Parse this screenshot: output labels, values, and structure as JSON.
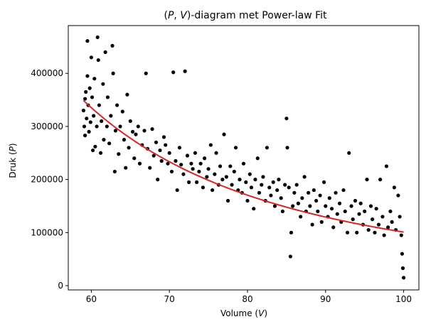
{
  "chart_data": {
    "type": "scatter",
    "title_parts": [
      "(",
      "P",
      ", ",
      "V",
      ")-diagram met Power-law Fit"
    ],
    "xlabel_parts": [
      "Volume (",
      "V",
      ")"
    ],
    "ylabel_parts": [
      "Druk (",
      "P",
      ")"
    ],
    "xlim": [
      57.05,
      101.95
    ],
    "ylim": [
      -8000,
      490000
    ],
    "x_ticks": [
      60,
      70,
      80,
      90,
      100
    ],
    "y_ticks": [
      0,
      100000,
      200000,
      300000,
      400000
    ],
    "grid": false,
    "colors": {
      "points": "#000000",
      "fit": "#d62728",
      "axes": "#000000"
    },
    "fit": {
      "label": "Power-law Fit",
      "form": "P = a * V^b",
      "a": 5060000000.0,
      "b": -2.35,
      "x_range": [
        59,
        100
      ]
    },
    "scatter_summary": {
      "x_range": [
        59,
        100
      ],
      "y_min_estimate": 13000,
      "y_max_estimate": 468000,
      "description": "dense noisy data cloud scattered around the fitted power-law curve"
    },
    "points": [
      [
        59.0,
        330000
      ],
      [
        59.1,
        300000
      ],
      [
        59.2,
        352000
      ],
      [
        59.2,
        283000
      ],
      [
        59.3,
        365000
      ],
      [
        59.4,
        315000
      ],
      [
        59.5,
        461000
      ],
      [
        59.5,
        395000
      ],
      [
        59.6,
        340000
      ],
      [
        59.7,
        290000
      ],
      [
        59.8,
        372000
      ],
      [
        59.9,
        308000
      ],
      [
        60.0,
        430000
      ],
      [
        60.1,
        355000
      ],
      [
        60.2,
        255000
      ],
      [
        60.3,
        320000
      ],
      [
        60.4,
        390000
      ],
      [
        60.5,
        262000
      ],
      [
        60.7,
        300000
      ],
      [
        60.8,
        468000
      ],
      [
        60.9,
        425000
      ],
      [
        61.0,
        340000
      ],
      [
        61.2,
        250000
      ],
      [
        61.3,
        310000
      ],
      [
        61.5,
        380000
      ],
      [
        61.6,
        275000
      ],
      [
        61.8,
        440000
      ],
      [
        62.0,
        300000
      ],
      [
        62.1,
        355000
      ],
      [
        62.3,
        268000
      ],
      [
        62.5,
        320000
      ],
      [
        62.7,
        452000
      ],
      [
        62.8,
        400000
      ],
      [
        63.0,
        215000
      ],
      [
        63.1,
        292000
      ],
      [
        63.3,
        340000
      ],
      [
        63.5,
        248000
      ],
      [
        63.7,
        300000
      ],
      [
        64.0,
        328000
      ],
      [
        64.2,
        275000
      ],
      [
        64.4,
        222000
      ],
      [
        64.6,
        360000
      ],
      [
        64.8,
        260000
      ],
      [
        65.0,
        310000
      ],
      [
        65.3,
        290000
      ],
      [
        65.5,
        240000
      ],
      [
        65.7,
        285000
      ],
      [
        66.0,
        300000
      ],
      [
        66.2,
        230000
      ],
      [
        66.5,
        265000
      ],
      [
        66.8,
        292000
      ],
      [
        67.0,
        400000
      ],
      [
        67.2,
        258000
      ],
      [
        67.5,
        222000
      ],
      [
        67.8,
        295000
      ],
      [
        68.0,
        245000
      ],
      [
        68.3,
        270000
      ],
      [
        68.5,
        200000
      ],
      [
        68.8,
        255000
      ],
      [
        69.0,
        235000
      ],
      [
        69.3,
        280000
      ],
      [
        69.5,
        265000
      ],
      [
        69.8,
        230000
      ],
      [
        70.0,
        250000
      ],
      [
        70.3,
        215000
      ],
      [
        70.5,
        402000
      ],
      [
        70.8,
        235000
      ],
      [
        71.0,
        180000
      ],
      [
        71.3,
        260000
      ],
      [
        71.5,
        228000
      ],
      [
        71.8,
        210000
      ],
      [
        72.0,
        404000
      ],
      [
        72.3,
        245000
      ],
      [
        72.5,
        195000
      ],
      [
        72.8,
        230000
      ],
      [
        73.0,
        220000
      ],
      [
        73.3,
        250000
      ],
      [
        73.5,
        195000
      ],
      [
        73.8,
        215000
      ],
      [
        74.0,
        230000
      ],
      [
        74.3,
        185000
      ],
      [
        74.5,
        240000
      ],
      [
        74.8,
        205000
      ],
      [
        75.0,
        220000
      ],
      [
        75.3,
        265000
      ],
      [
        75.5,
        180000
      ],
      [
        75.8,
        210000
      ],
      [
        76.0,
        250000
      ],
      [
        76.3,
        190000
      ],
      [
        76.5,
        225000
      ],
      [
        76.8,
        200000
      ],
      [
        77.0,
        285000
      ],
      [
        77.3,
        205000
      ],
      [
        77.5,
        160000
      ],
      [
        77.8,
        225000
      ],
      [
        78.0,
        190000
      ],
      [
        78.3,
        215000
      ],
      [
        78.5,
        260000
      ],
      [
        78.8,
        180000
      ],
      [
        79.0,
        200000
      ],
      [
        79.3,
        175000
      ],
      [
        79.5,
        230000
      ],
      [
        79.8,
        195000
      ],
      [
        80.0,
        160000
      ],
      [
        80.3,
        210000
      ],
      [
        80.5,
        185000
      ],
      [
        80.8,
        145000
      ],
      [
        81.0,
        200000
      ],
      [
        81.3,
        240000
      ],
      [
        81.5,
        175000
      ],
      [
        81.8,
        190000
      ],
      [
        82.0,
        205000
      ],
      [
        82.3,
        160000
      ],
      [
        82.5,
        260000
      ],
      [
        82.8,
        185000
      ],
      [
        83.0,
        170000
      ],
      [
        83.3,
        195000
      ],
      [
        83.5,
        150000
      ],
      [
        83.8,
        180000
      ],
      [
        84.0,
        200000
      ],
      [
        84.3,
        165000
      ],
      [
        84.5,
        140000
      ],
      [
        84.8,
        190000
      ],
      [
        85.0,
        315000
      ],
      [
        85.1,
        260000
      ],
      [
        85.3,
        185000
      ],
      [
        85.5,
        55000
      ],
      [
        85.6,
        100000
      ],
      [
        85.8,
        150000
      ],
      [
        86.0,
        175000
      ],
      [
        86.3,
        190000
      ],
      [
        86.5,
        155000
      ],
      [
        86.8,
        130000
      ],
      [
        87.0,
        165000
      ],
      [
        87.3,
        205000
      ],
      [
        87.5,
        140000
      ],
      [
        87.8,
        175000
      ],
      [
        88.0,
        150000
      ],
      [
        88.3,
        115000
      ],
      [
        88.5,
        180000
      ],
      [
        88.8,
        160000
      ],
      [
        89.0,
        140000
      ],
      [
        89.3,
        170000
      ],
      [
        89.5,
        120000
      ],
      [
        89.8,
        195000
      ],
      [
        90.0,
        150000
      ],
      [
        90.3,
        130000
      ],
      [
        90.5,
        165000
      ],
      [
        90.8,
        145000
      ],
      [
        91.0,
        110000
      ],
      [
        91.3,
        175000
      ],
      [
        91.5,
        135000
      ],
      [
        91.8,
        155000
      ],
      [
        92.0,
        120000
      ],
      [
        92.3,
        180000
      ],
      [
        92.5,
        140000
      ],
      [
        92.8,
        100000
      ],
      [
        93.0,
        250000
      ],
      [
        93.3,
        150000
      ],
      [
        93.5,
        125000
      ],
      [
        93.8,
        160000
      ],
      [
        94.0,
        100000
      ],
      [
        94.3,
        135000
      ],
      [
        94.5,
        155000
      ],
      [
        94.8,
        115000
      ],
      [
        95.0,
        140000
      ],
      [
        95.3,
        200000
      ],
      [
        95.5,
        105000
      ],
      [
        95.8,
        150000
      ],
      [
        96.0,
        125000
      ],
      [
        96.3,
        100000
      ],
      [
        96.5,
        145000
      ],
      [
        96.8,
        115000
      ],
      [
        97.0,
        200000
      ],
      [
        97.3,
        130000
      ],
      [
        97.5,
        95000
      ],
      [
        97.8,
        225000
      ],
      [
        98.0,
        110000
      ],
      [
        98.3,
        140000
      ],
      [
        98.5,
        120000
      ],
      [
        98.8,
        185000
      ],
      [
        99.0,
        105000
      ],
      [
        99.3,
        170000
      ],
      [
        99.5,
        130000
      ],
      [
        99.7,
        95000
      ],
      [
        99.8,
        60000
      ],
      [
        99.9,
        33000
      ],
      [
        100.0,
        15000
      ]
    ]
  }
}
